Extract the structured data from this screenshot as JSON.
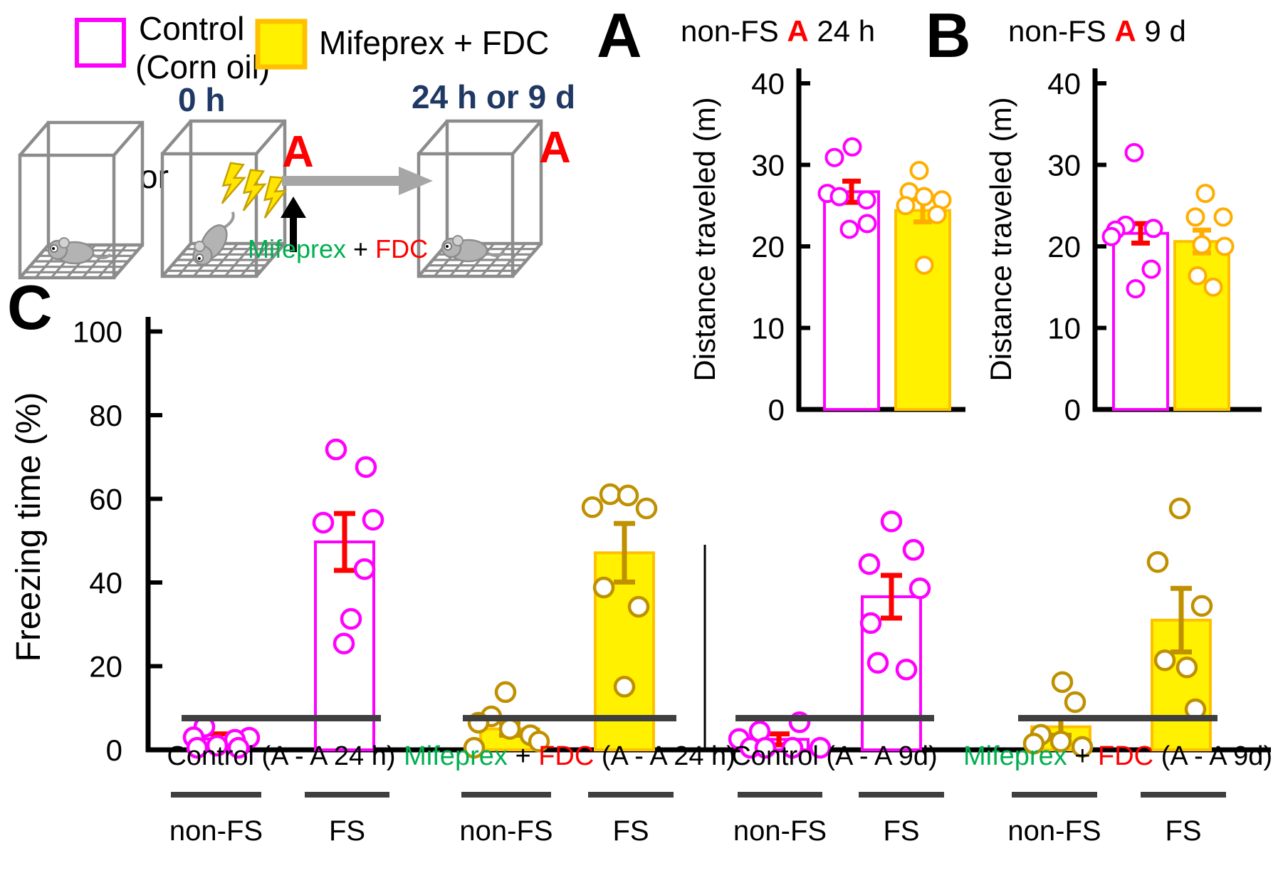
{
  "colors": {
    "magenta": "#FF00FF",
    "yellow_fill": "#FFF100",
    "yellow_edge": "#FFC000",
    "gold": "#BF9000",
    "orange": "#FFAE00",
    "red": "#FF0000",
    "green": "#00B050",
    "navy": "#1F3864",
    "cage_gray": "#8C8C8C",
    "arrow_gray": "#A6A6A6",
    "underline_gray": "#3F3F3F",
    "black": "#000000"
  },
  "legend": {
    "control_line1": "Control",
    "control_line2": "(Corn oil)",
    "treatment_label": "Mifeprex + FDC"
  },
  "schematic": {
    "time_start": "0 h",
    "or_label": "or",
    "time_test": "24 h or 9 d",
    "context_label": "A",
    "injection_parts": [
      {
        "text": "Mifeprex ",
        "color": "#00B050"
      },
      {
        "text": "+ ",
        "color": "#000000"
      },
      {
        "text": "FDC",
        "color": "#FF0000"
      }
    ]
  },
  "panels": {
    "A": {
      "letter": "A",
      "title_parts": [
        {
          "text": "non-FS ",
          "color": "#000000"
        },
        {
          "text": "A",
          "color": "#FF0000"
        },
        {
          "text": " 24 h",
          "color": "#000000"
        }
      ],
      "ylabel": "Distance traveled (m)"
    },
    "B": {
      "letter": "B",
      "title_parts": [
        {
          "text": "non-FS ",
          "color": "#000000"
        },
        {
          "text": "A",
          "color": "#FF0000"
        },
        {
          "text": " 9 d",
          "color": "#000000"
        }
      ],
      "ylabel": "Distance traveled (m)"
    },
    "C": {
      "letter": "C",
      "ylabel": "Freezing time (%)",
      "sub_labels": [
        "non-FS",
        "FS"
      ]
    }
  },
  "chart_data": [
    {
      "id": "A",
      "type": "bar",
      "title": "non-FS A 24 h",
      "ylabel": "Distance traveled (m)",
      "ylim": [
        0,
        40
      ],
      "yticks": [
        0,
        10,
        20,
        30,
        40
      ],
      "series": [
        {
          "name": "Control (Corn oil)",
          "mean": 26.7,
          "sem": 1.3,
          "points": [
            [
              32.2,
              1
            ],
            [
              30.9,
              -24
            ],
            [
              26.5,
              -34
            ],
            [
              26.1,
              -17
            ],
            [
              25.7,
              21
            ],
            [
              22.8,
              22
            ],
            [
              22.1,
              -3
            ]
          ]
        },
        {
          "name": "Mifeprex + FDC",
          "mean": 24.4,
          "sem": 1.4,
          "points": [
            [
              29.3,
              -5
            ],
            [
              26.7,
              -19
            ],
            [
              26.1,
              2
            ],
            [
              25.7,
              27
            ],
            [
              25.0,
              -24
            ],
            [
              23.9,
              20
            ],
            [
              17.7,
              2
            ]
          ]
        }
      ]
    },
    {
      "id": "B",
      "type": "bar",
      "title": "non-FS A 9 d",
      "ylabel": "Distance traveled (m)",
      "ylim": [
        0,
        40
      ],
      "yticks": [
        0,
        10,
        20,
        30,
        40
      ],
      "series": [
        {
          "name": "Control (Corn oil)",
          "mean": 21.6,
          "sem": 1.2,
          "points": [
            [
              31.5,
              -9
            ],
            [
              22.6,
              -21
            ],
            [
              22.2,
              18
            ],
            [
              22.0,
              -35
            ],
            [
              21.2,
              -41
            ],
            [
              17.2,
              15
            ],
            [
              14.8,
              -7
            ]
          ]
        },
        {
          "name": "Mifeprex + FDC",
          "mean": 20.6,
          "sem": 1.4,
          "points": [
            [
              26.5,
              5
            ],
            [
              23.6,
              -9
            ],
            [
              23.6,
              30
            ],
            [
              20.2,
              0
            ],
            [
              20.0,
              32
            ],
            [
              16.4,
              -6
            ],
            [
              15.0,
              16
            ]
          ]
        }
      ]
    },
    {
      "id": "C",
      "type": "bar",
      "ylabel": "Freezing time (%)",
      "ylim": [
        0,
        100
      ],
      "yticks": [
        0,
        20,
        40,
        60,
        80,
        100
      ],
      "groups": [
        {
          "label_parts": [
            {
              "text": "Control (A - A 24 h)",
              "color": "#000000"
            }
          ],
          "treatment": "control",
          "bars": [
            {
              "condition": "non-FS",
              "mean": 2.6,
              "sem": 1.2,
              "points": [
                [
                  5.5,
                  -21
                ],
                [
                  3.0,
                  -36
                ],
                [
                  2.9,
                  42
                ],
                [
                  2.4,
                  22
                ],
                [
                  1.0,
                  -3
                ],
                [
                  0.5,
                  -31
                ],
                [
                  0.5,
                  27
                ]
              ]
            },
            {
              "condition": "FS",
              "mean": 49.7,
              "sem": 6.8,
              "points": [
                [
                  71.8,
                  -12
                ],
                [
                  67.6,
                  30
                ],
                [
                  55.0,
                  40
                ],
                [
                  54.3,
                  -30
                ],
                [
                  43.2,
                  28
                ],
                [
                  31.3,
                  9
                ],
                [
                  25.4,
                  -1
                ]
              ]
            }
          ]
        },
        {
          "label_parts": [
            {
              "text": "Mifeprex ",
              "color": "#00B050"
            },
            {
              "text": "+ ",
              "color": "#000000"
            },
            {
              "text": "FDC ",
              "color": "#FF0000"
            },
            {
              "text": "(A - A 24 h)",
              "color": "#000000"
            }
          ],
          "treatment": "mifeprex",
          "bars": [
            {
              "condition": "non-FS",
              "mean": 5.0,
              "sem": 1.5,
              "points": [
                [
                  13.8,
                  -6
                ],
                [
                  8.0,
                  -26
                ],
                [
                  6.5,
                  -44
                ],
                [
                  5.0,
                  0
                ],
                [
                  3.5,
                  29
                ],
                [
                  2.0,
                  41
                ],
                [
                  0.5,
                  -50
                ]
              ]
            },
            {
              "condition": "FS",
              "mean": 47.1,
              "sem": 7.0,
              "points": [
                [
                  61.1,
                  -20
                ],
                [
                  60.8,
                  5
                ],
                [
                  58.0,
                  -45
                ],
                [
                  57.7,
                  31
                ],
                [
                  38.8,
                  -29
                ],
                [
                  34.2,
                  20
                ],
                [
                  15.1,
                  0
                ]
              ]
            }
          ]
        },
        {
          "label_parts": [
            {
              "text": "Control (A - A 9d)",
              "color": "#000000"
            }
          ],
          "treatment": "control",
          "bars": [
            {
              "condition": "non-FS",
              "mean": 2.5,
              "sem": 1.3,
              "points": [
                [
                  6.6,
                  29
                ],
                [
                  4.4,
                  -27
                ],
                [
                  2.6,
                  -56
                ],
                [
                  0.5,
                  -40
                ],
                [
                  0.5,
                  -19
                ],
                [
                  0.5,
                  19
                ],
                [
                  0.5,
                  58
                ]
              ]
            },
            {
              "condition": "FS",
              "mean": 36.6,
              "sem": 5.1,
              "points": [
                [
                  54.6,
                  0
                ],
                [
                  47.8,
                  31
                ],
                [
                  44.4,
                  -31
                ],
                [
                  38.6,
                  40
                ],
                [
                  30.3,
                  -29
                ],
                [
                  20.8,
                  -19
                ],
                [
                  19.2,
                  21
                ]
              ]
            }
          ]
        },
        {
          "label_parts": [
            {
              "text": "Mifeprex ",
              "color": "#00B050"
            },
            {
              "text": "+ ",
              "color": "#000000"
            },
            {
              "text": "FDC ",
              "color": "#FF0000"
            },
            {
              "text": "(A - A 9d)",
              "color": "#000000"
            }
          ],
          "treatment": "mifeprex",
          "bars": [
            {
              "condition": "non-FS",
              "mean": 5.5,
              "sem": 2.0,
              "points": [
                [
                  16.2,
                  2
                ],
                [
                  11.4,
                  20
                ],
                [
                  3.6,
                  -28
                ],
                [
                  2.0,
                  0
                ],
                [
                  1.5,
                  -38
                ],
                [
                  0.7,
                  30
                ]
              ]
            },
            {
              "condition": "FS",
              "mean": 31.0,
              "sem": 7.6,
              "points": [
                [
                  57.7,
                  -2
                ],
                [
                  44.9,
                  -33
                ],
                [
                  34.4,
                  29
                ],
                [
                  21.4,
                  -23
                ],
                [
                  19.7,
                  8
                ],
                [
                  9.7,
                  20
                ]
              ]
            }
          ]
        }
      ]
    }
  ]
}
